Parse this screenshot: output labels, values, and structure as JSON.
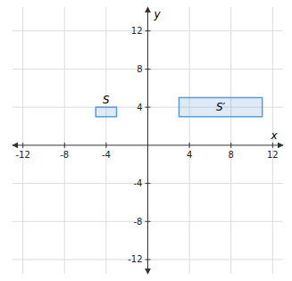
{
  "chart_data": {
    "type": "rectangles",
    "xlabel": "x",
    "ylabel": "y",
    "xlim": [
      -13,
      13
    ],
    "ylim": [
      -13.5,
      14.5
    ],
    "xticks": [
      -12,
      -8,
      -4,
      4,
      8,
      12
    ],
    "yticks": [
      -12,
      -8,
      -4,
      4,
      8,
      12
    ],
    "grid": true,
    "color": "#5b9bd5",
    "rectangles": [
      {
        "label": "S",
        "x": -5,
        "y": 3,
        "width": 2,
        "height": 1
      },
      {
        "label": "S′",
        "x": 3,
        "y": 3,
        "width": 8,
        "height": 2
      }
    ]
  }
}
